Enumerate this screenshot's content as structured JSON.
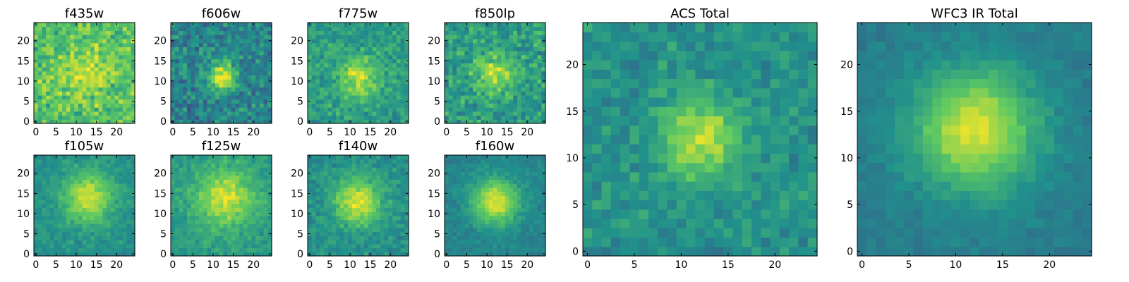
{
  "figure": {
    "colormap": "viridis",
    "colormap_stops": [
      "#440154",
      "#3b528b",
      "#21918c",
      "#5ec962",
      "#fde725"
    ],
    "frame_color": "#000000"
  },
  "chart_data": [
    {
      "type": "heatmap",
      "title": "f435w",
      "grid": [
        25,
        25
      ],
      "xlim": [
        0,
        24
      ],
      "ylim": [
        0,
        24
      ],
      "xticks": [
        0,
        5,
        10,
        15,
        20
      ],
      "yticks": [
        0,
        5,
        10,
        15,
        20
      ],
      "peak": [
        12,
        12
      ],
      "peak_spread": 4,
      "signal_strength": 0.18,
      "background": 0.72,
      "noise": 0.22,
      "seed": 11
    },
    {
      "type": "heatmap",
      "title": "f606w",
      "grid": [
        25,
        25
      ],
      "xlim": [
        0,
        24
      ],
      "ylim": [
        0,
        24
      ],
      "xticks": [
        0,
        5,
        10,
        15,
        20
      ],
      "yticks": [
        0,
        5,
        10,
        15,
        20
      ],
      "peak": [
        12,
        11
      ],
      "peak_spread": 2.5,
      "signal_strength": 0.5,
      "background": 0.45,
      "noise": 0.2,
      "seed": 23
    },
    {
      "type": "heatmap",
      "title": "f775w",
      "grid": [
        25,
        25
      ],
      "xlim": [
        0,
        24
      ],
      "ylim": [
        0,
        24
      ],
      "xticks": [
        0,
        5,
        10,
        15,
        20
      ],
      "yticks": [
        0,
        5,
        10,
        15,
        20
      ],
      "peak": [
        12,
        11
      ],
      "peak_spread": 3.5,
      "signal_strength": 0.35,
      "background": 0.55,
      "noise": 0.16,
      "seed": 37
    },
    {
      "type": "heatmap",
      "title": "f850lp",
      "grid": [
        25,
        25
      ],
      "xlim": [
        0,
        24
      ],
      "ylim": [
        0,
        24
      ],
      "xticks": [
        0,
        5,
        10,
        15,
        20
      ],
      "yticks": [
        0,
        5,
        10,
        15,
        20
      ],
      "peak": [
        12,
        12
      ],
      "peak_spread": 3.5,
      "signal_strength": 0.3,
      "background": 0.55,
      "noise": 0.2,
      "seed": 41
    },
    {
      "type": "heatmap",
      "title": "f105w",
      "grid": [
        25,
        25
      ],
      "xlim": [
        0,
        24
      ],
      "ylim": [
        0,
        24
      ],
      "xticks": [
        0,
        5,
        10,
        15,
        20
      ],
      "yticks": [
        0,
        5,
        10,
        15,
        20
      ],
      "peak": [
        13,
        14
      ],
      "peak_spread": 4.5,
      "signal_strength": 0.42,
      "background": 0.5,
      "noise": 0.1,
      "seed": 53
    },
    {
      "type": "heatmap",
      "title": "f125w",
      "grid": [
        25,
        25
      ],
      "xlim": [
        0,
        24
      ],
      "ylim": [
        0,
        24
      ],
      "xticks": [
        0,
        5,
        10,
        15,
        20
      ],
      "yticks": [
        0,
        5,
        10,
        15,
        20
      ],
      "peak": [
        13,
        14
      ],
      "peak_spread": 5,
      "signal_strength": 0.38,
      "background": 0.55,
      "noise": 0.1,
      "seed": 67
    },
    {
      "type": "heatmap",
      "title": "f140w",
      "grid": [
        25,
        25
      ],
      "xlim": [
        0,
        24
      ],
      "ylim": [
        0,
        24
      ],
      "xticks": [
        0,
        5,
        10,
        15,
        20
      ],
      "yticks": [
        0,
        5,
        10,
        15,
        20
      ],
      "peak": [
        12,
        13
      ],
      "peak_spread": 4,
      "signal_strength": 0.45,
      "background": 0.5,
      "noise": 0.12,
      "seed": 71
    },
    {
      "type": "heatmap",
      "title": "f160w",
      "grid": [
        25,
        25
      ],
      "xlim": [
        0,
        24
      ],
      "ylim": [
        0,
        24
      ],
      "xticks": [
        0,
        5,
        10,
        15,
        20
      ],
      "yticks": [
        0,
        5,
        10,
        15,
        20
      ],
      "peak": [
        12,
        13
      ],
      "peak_spread": 4,
      "signal_strength": 0.5,
      "background": 0.45,
      "noise": 0.08,
      "seed": 83
    },
    {
      "type": "heatmap",
      "title": "ACS Total",
      "grid": [
        25,
        25
      ],
      "xlim": [
        0,
        24
      ],
      "ylim": [
        0,
        24
      ],
      "xticks": [
        0,
        5,
        10,
        15,
        20
      ],
      "yticks": [
        0,
        5,
        10,
        15,
        20
      ],
      "peak": [
        12,
        12
      ],
      "peak_spread": 3,
      "signal_strength": 0.4,
      "background": 0.5,
      "noise": 0.13,
      "seed": 97
    },
    {
      "type": "heatmap",
      "title": "WFC3 IR Total",
      "grid": [
        25,
        25
      ],
      "xlim": [
        0,
        24
      ],
      "ylim": [
        0,
        24
      ],
      "xticks": [
        0,
        5,
        10,
        15,
        20
      ],
      "yticks": [
        0,
        5,
        10,
        15,
        20
      ],
      "peak": [
        12,
        13
      ],
      "peak_spread": 4.5,
      "signal_strength": 0.52,
      "background": 0.42,
      "noise": 0.06,
      "seed": 101
    }
  ]
}
